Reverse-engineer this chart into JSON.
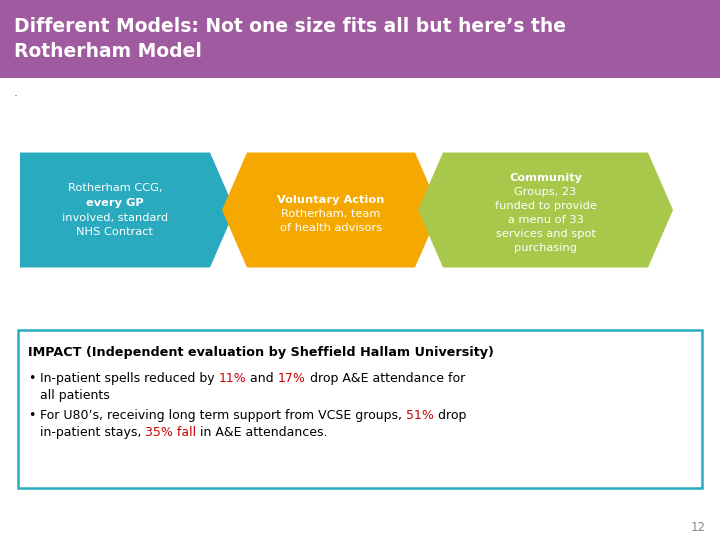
{
  "title_line1": "Different Models: Not one size fits all but here’s the",
  "title_line2": "Rotherham Model",
  "title_bg_color": "#A05AA0",
  "title_text_color": "#FFFFFF",
  "bg_color": "#FFFFFF",
  "arrow1_color": "#29AABF",
  "arrow2_color": "#F5A800",
  "arrow3_color": "#A8C84B",
  "box_border_color": "#29AABF",
  "page_number": "12",
  "text_color": "#000000",
  "red_color": "#CC0000"
}
